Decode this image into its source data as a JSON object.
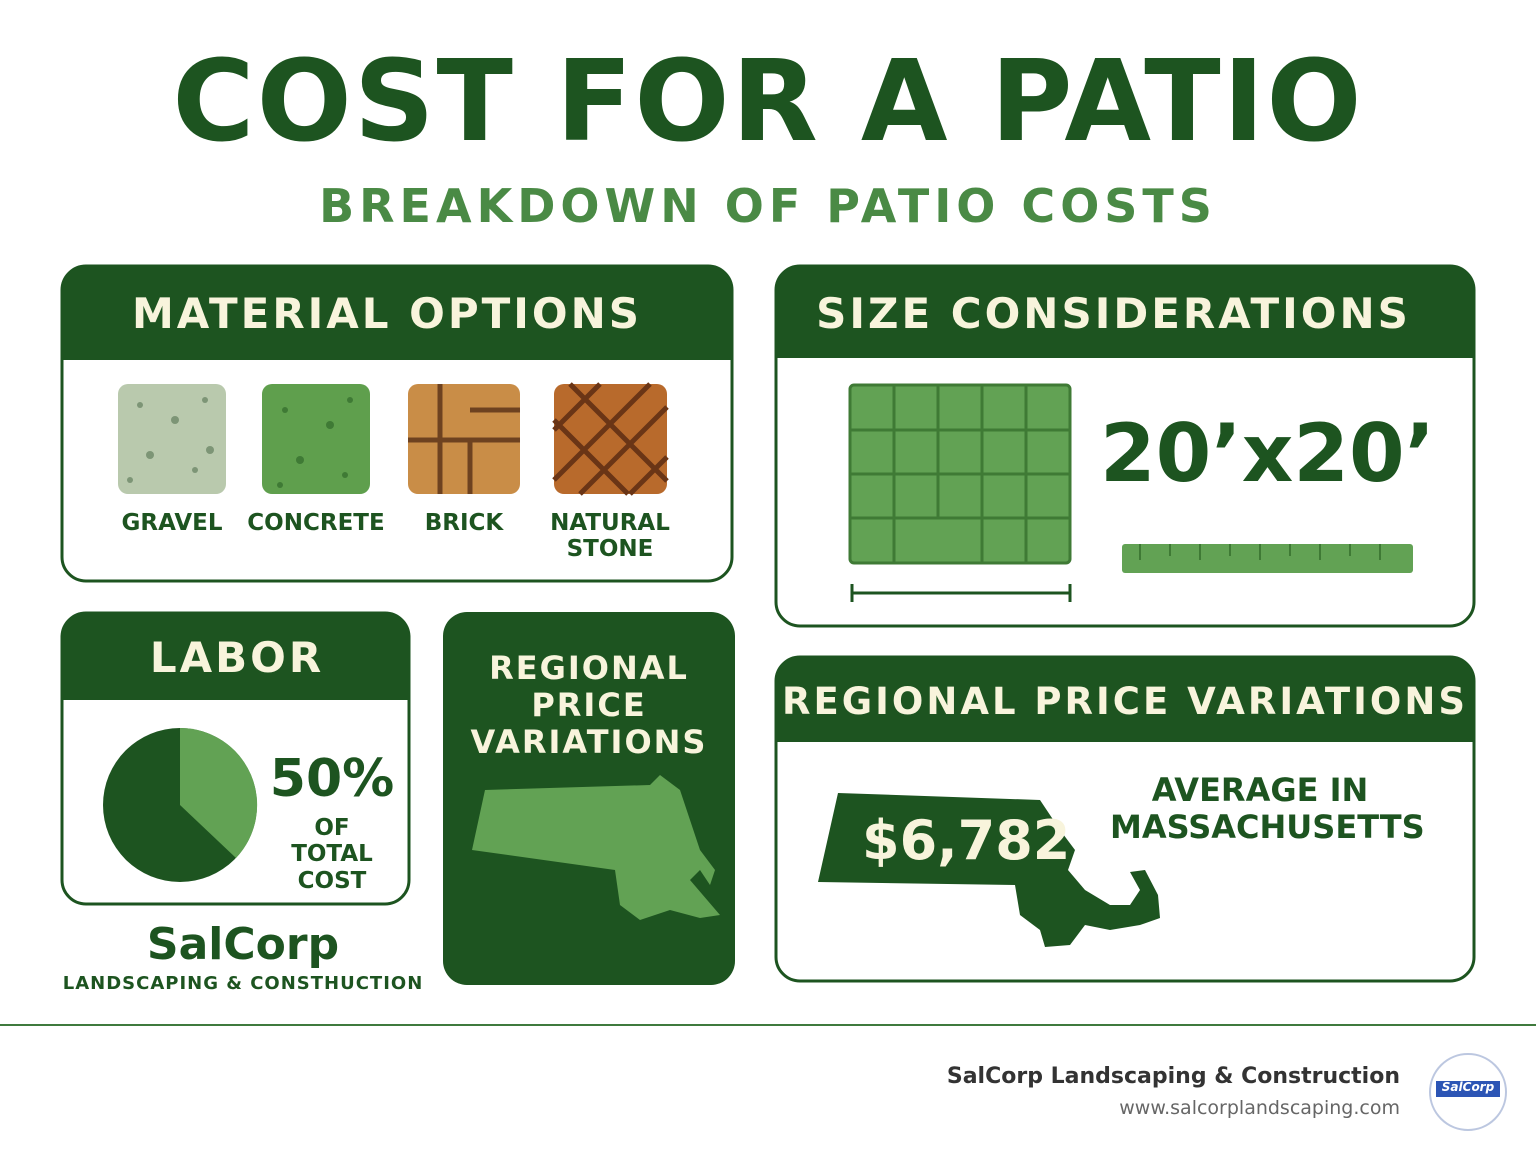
{
  "header": {
    "title": "COST FOR A PATIO",
    "subtitle": "BREAKDOWN OF PATIO COSTS"
  },
  "material_options": {
    "title": "MATERIAL OPTIONS",
    "items": [
      "GRAVEL",
      "CONCRETE",
      "BRICK",
      "NATURAL STONE"
    ]
  },
  "size": {
    "title": "SIZE CONSIDERATIONS",
    "dimensions": "20’x20’"
  },
  "labor": {
    "title": "LABOR",
    "percent": "50%",
    "caption": "OF TOTAL COST"
  },
  "regional_card": {
    "title": "REGIONAL PRICE VARIATIONS"
  },
  "regional_price": {
    "title": "REGIONAL PRICE VARIATIONS",
    "price": "$6,782",
    "caption": "AVERAGE IN MASSACHUSETTS"
  },
  "brand": {
    "name": "SalCorp",
    "tagline": "LANDSCAPING & CONSTHUCTION"
  },
  "footer": {
    "company": "SalCorp Landscaping & Construction",
    "url": "www.salcorplandscaping.com",
    "logo": "SalCorp"
  }
}
